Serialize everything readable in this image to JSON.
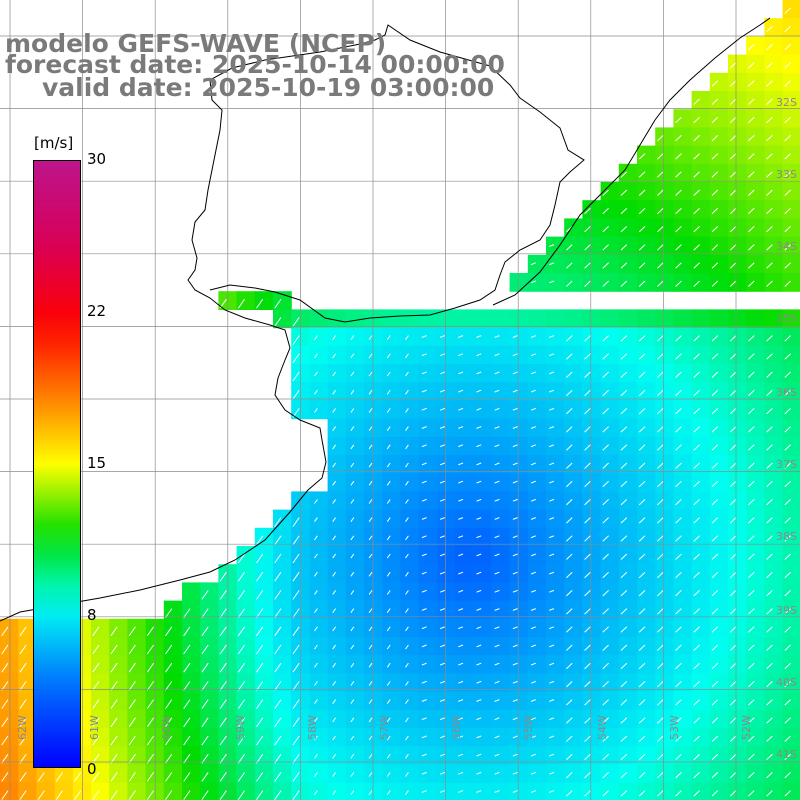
{
  "titles": {
    "line1": "modelo GEFS-WAVE (NCEP)",
    "line2": "forecast date: 2025-10-14 00:00:00",
    "line3": "valid date: 2025-10-19 03:00:00"
  },
  "colorbar": {
    "unit": "[m/s]",
    "ticks": [
      "30",
      "22",
      "15",
      "8",
      "0"
    ],
    "tick_values": [
      30,
      22,
      15,
      8,
      0
    ],
    "range": [
      0,
      30
    ]
  },
  "lat_labels": [
    "32S",
    "33S",
    "34S",
    "35S",
    "36S",
    "37S",
    "38S",
    "39S",
    "40S",
    "41S"
  ],
  "lon_labels": [
    "62W",
    "61W",
    "60W",
    "59W",
    "58W",
    "57W",
    "56W",
    "55W",
    "54W",
    "53W",
    "52W"
  ],
  "colors": {
    "land": "#ffffff",
    "grid": "#8c8c8c",
    "coast": "#000000",
    "arrow": "#ffffff"
  }
}
